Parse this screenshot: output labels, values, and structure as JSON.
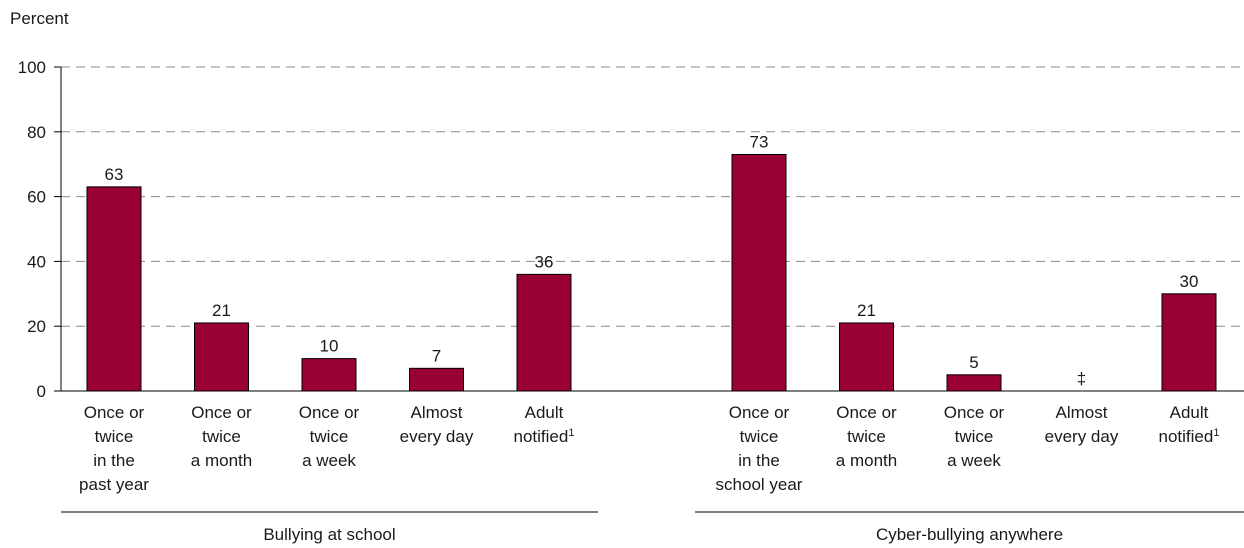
{
  "chart_data": {
    "type": "bar",
    "ylabel": "Percent",
    "ylim": [
      0,
      100
    ],
    "yticks": [
      0,
      20,
      40,
      60,
      80,
      100
    ],
    "grid": true,
    "bar_color": "#990033",
    "groups": [
      {
        "name": "Bullying at school",
        "categories": [
          {
            "lines": [
              "Once or",
              "twice",
              "in the",
              "past year"
            ],
            "sup": ""
          },
          {
            "lines": [
              "Once or",
              "twice",
              "a month"
            ],
            "sup": ""
          },
          {
            "lines": [
              "Once or",
              "twice",
              "a week"
            ],
            "sup": ""
          },
          {
            "lines": [
              "Almost",
              "every day"
            ],
            "sup": ""
          },
          {
            "lines": [
              "Adult",
              "notified"
            ],
            "sup": "1"
          }
        ],
        "values": [
          63,
          21,
          10,
          7,
          36
        ],
        "labels": [
          "63",
          "21",
          "10",
          "7",
          "36"
        ]
      },
      {
        "name": "Cyber-bullying anywhere",
        "categories": [
          {
            "lines": [
              "Once or",
              "twice",
              "in the",
              "school year"
            ],
            "sup": ""
          },
          {
            "lines": [
              "Once or",
              "twice",
              "a month"
            ],
            "sup": ""
          },
          {
            "lines": [
              "Once or",
              "twice",
              "a week"
            ],
            "sup": ""
          },
          {
            "lines": [
              "Almost",
              "every day"
            ],
            "sup": ""
          },
          {
            "lines": [
              "Adult",
              "notified"
            ],
            "sup": "1"
          }
        ],
        "values": [
          73,
          21,
          5,
          null,
          30
        ],
        "labels": [
          "73",
          "21",
          "5",
          "‡",
          "30"
        ]
      }
    ]
  }
}
